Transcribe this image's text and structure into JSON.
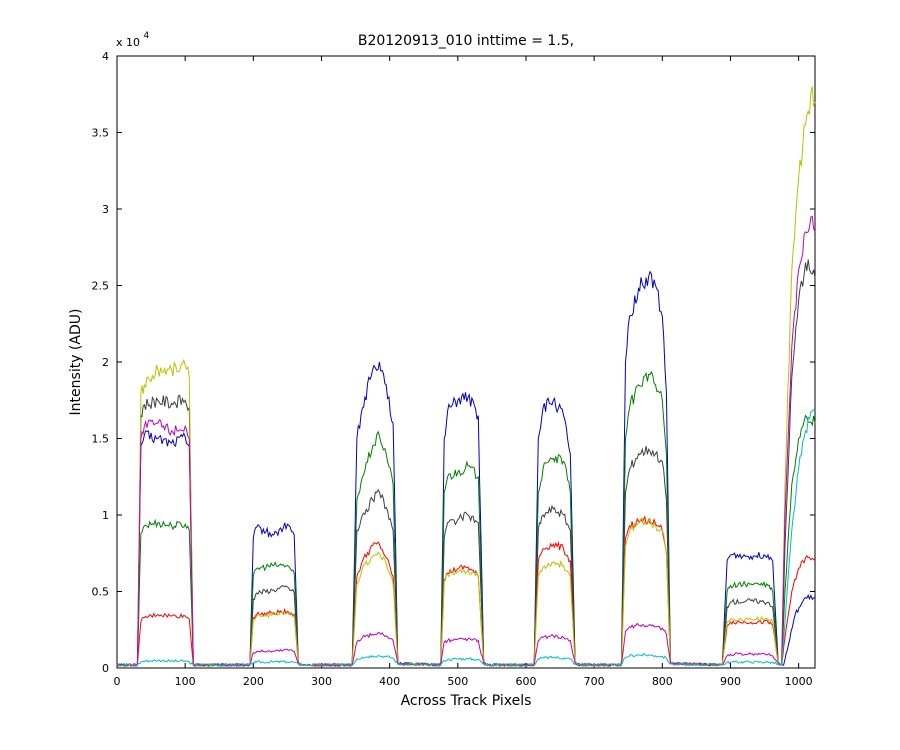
{
  "chart_data": {
    "type": "line",
    "title": "B20120913_010 inttime = 1.5,",
    "xlabel": "Across Track Pixels",
    "ylabel": "Intensity (ADU)",
    "y_exponent_label": "x 10",
    "y_exponent": "4",
    "xlim": [
      0,
      1024
    ],
    "ylim": [
      0,
      40000
    ],
    "x_ticks": [
      0,
      100,
      200,
      300,
      400,
      500,
      600,
      700,
      800,
      900,
      1000
    ],
    "x_tick_labels": [
      "0",
      "100",
      "200",
      "300",
      "400",
      "500",
      "600",
      "700",
      "800",
      "900",
      "1000"
    ],
    "y_ticks": [
      0,
      5000,
      10000,
      15000,
      20000,
      25000,
      30000,
      35000,
      40000
    ],
    "y_tick_labels": [
      "0",
      "0.5",
      "1",
      "1.5",
      "2",
      "2.5",
      "3",
      "3.5",
      "4"
    ],
    "grid": false,
    "colors": [
      "#0000bf",
      "#007f00",
      "#3f3f3f",
      "#ff0000",
      "#bfbf00",
      "#bf00bf",
      "#00bfbf"
    ],
    "series": [
      {
        "color": "#0000bf",
        "x": [
          0,
          30,
          35,
          40,
          60,
          80,
          100,
          106,
          112,
          195,
          200,
          205,
          230,
          250,
          260,
          266,
          272,
          345,
          352,
          360,
          375,
          385,
          395,
          405,
          412,
          475,
          480,
          485,
          500,
          515,
          530,
          538,
          545,
          612,
          618,
          625,
          640,
          655,
          665,
          672,
          680,
          740,
          746,
          752,
          765,
          780,
          790,
          800,
          806,
          812,
          888,
          895,
          900,
          930,
          955,
          962,
          970,
          978,
          985,
          995,
          1010,
          1024
        ],
        "values": [
          200,
          200,
          14500,
          15200,
          15000,
          14700,
          15100,
          14500,
          200,
          200,
          8500,
          9200,
          8700,
          9400,
          8700,
          300,
          200,
          200,
          15000,
          17000,
          19500,
          20000,
          18500,
          16000,
          300,
          200,
          15000,
          16800,
          17500,
          17700,
          16500,
          300,
          200,
          200,
          15000,
          17000,
          17500,
          16500,
          14000,
          300,
          200,
          200,
          20000,
          23000,
          24800,
          25600,
          25000,
          23000,
          18000,
          300,
          200,
          7000,
          7400,
          7300,
          7400,
          7000,
          300,
          200,
          1500,
          3500,
          4600,
          4600
        ]
      },
      {
        "color": "#007f00",
        "x": [
          0,
          30,
          35,
          40,
          60,
          80,
          100,
          106,
          112,
          195,
          200,
          205,
          230,
          250,
          260,
          266,
          272,
          345,
          352,
          360,
          375,
          385,
          395,
          405,
          412,
          475,
          480,
          485,
          500,
          515,
          530,
          538,
          545,
          612,
          618,
          625,
          640,
          655,
          665,
          672,
          680,
          740,
          746,
          752,
          765,
          780,
          790,
          800,
          806,
          812,
          888,
          895,
          900,
          930,
          955,
          962,
          970,
          975,
          980,
          990,
          1000,
          1010,
          1024
        ],
        "values": [
          200,
          200,
          8800,
          9300,
          9500,
          9300,
          9400,
          9000,
          200,
          200,
          6000,
          6500,
          6700,
          6700,
          6200,
          300,
          200,
          200,
          11000,
          12500,
          14500,
          15200,
          14000,
          12000,
          300,
          200,
          11500,
          12500,
          12800,
          13200,
          12500,
          300,
          200,
          200,
          11500,
          13000,
          13700,
          13500,
          11500,
          300,
          200,
          200,
          15000,
          17000,
          18500,
          19200,
          18500,
          17500,
          14000,
          300,
          200,
          5000,
          5400,
          5500,
          5400,
          5000,
          300,
          200,
          5000,
          12000,
          15000,
          16500,
          16000
        ]
      },
      {
        "color": "#3f3f3f",
        "x": [
          0,
          30,
          35,
          40,
          60,
          80,
          100,
          106,
          112,
          195,
          200,
          205,
          230,
          250,
          260,
          266,
          272,
          345,
          352,
          360,
          375,
          385,
          395,
          405,
          412,
          475,
          480,
          485,
          500,
          515,
          530,
          538,
          545,
          612,
          618,
          625,
          640,
          655,
          665,
          672,
          680,
          740,
          746,
          752,
          765,
          780,
          790,
          800,
          806,
          812,
          888,
          895,
          900,
          930,
          955,
          962,
          970,
          975,
          980,
          990,
          1000,
          1010,
          1024
        ],
        "values": [
          200,
          200,
          16500,
          17200,
          17500,
          17300,
          17500,
          17000,
          200,
          200,
          4500,
          4900,
          5100,
          5300,
          4900,
          300,
          200,
          200,
          9000,
          10000,
          11000,
          11500,
          10500,
          9000,
          300,
          200,
          8500,
          9500,
          9700,
          10000,
          9500,
          300,
          200,
          200,
          9000,
          10000,
          10400,
          10000,
          9000,
          300,
          200,
          200,
          11500,
          13000,
          14000,
          14300,
          14000,
          13500,
          11000,
          300,
          200,
          4000,
          4300,
          4400,
          4300,
          4000,
          300,
          200,
          8000,
          19000,
          24000,
          26500,
          25500
        ]
      },
      {
        "color": "#ff0000",
        "x": [
          0,
          30,
          35,
          40,
          60,
          80,
          100,
          106,
          112,
          195,
          200,
          205,
          230,
          250,
          260,
          266,
          272,
          345,
          352,
          360,
          375,
          385,
          395,
          405,
          412,
          475,
          480,
          485,
          500,
          515,
          530,
          538,
          545,
          612,
          618,
          625,
          640,
          655,
          665,
          672,
          680,
          740,
          746,
          752,
          765,
          780,
          790,
          800,
          806,
          812,
          888,
          895,
          900,
          930,
          955,
          962,
          970,
          975,
          980,
          990,
          1000,
          1010,
          1024
        ],
        "values": [
          200,
          200,
          3000,
          3300,
          3500,
          3400,
          3400,
          3200,
          200,
          200,
          3300,
          3500,
          3600,
          3700,
          3500,
          300,
          200,
          200,
          6000,
          7000,
          8000,
          8100,
          7200,
          6000,
          300,
          200,
          5800,
          6200,
          6500,
          6600,
          6000,
          300,
          200,
          200,
          7000,
          7800,
          8100,
          7800,
          7000,
          300,
          200,
          200,
          8500,
          9300,
          9600,
          9700,
          9400,
          9000,
          7500,
          300,
          200,
          2800,
          3000,
          3000,
          3000,
          2800,
          300,
          200,
          2000,
          5000,
          6500,
          7200,
          7000
        ]
      },
      {
        "color": "#bfbf00",
        "x": [
          0,
          30,
          35,
          40,
          60,
          80,
          100,
          106,
          112,
          195,
          200,
          205,
          230,
          250,
          260,
          266,
          272,
          345,
          352,
          360,
          375,
          385,
          395,
          405,
          412,
          475,
          480,
          485,
          500,
          515,
          530,
          538,
          545,
          612,
          618,
          625,
          640,
          655,
          665,
          672,
          680,
          740,
          746,
          752,
          765,
          780,
          790,
          800,
          806,
          812,
          888,
          895,
          900,
          930,
          955,
          962,
          970,
          975,
          980,
          990,
          1000,
          1010,
          1020,
          1024
        ],
        "values": [
          200,
          200,
          18000,
          18500,
          19500,
          19500,
          19800,
          19000,
          200,
          200,
          3200,
          3400,
          3500,
          3600,
          3400,
          300,
          200,
          200,
          5500,
          6500,
          7300,
          7500,
          6800,
          5500,
          300,
          200,
          5700,
          6100,
          6300,
          6400,
          6000,
          300,
          200,
          200,
          6000,
          6600,
          6900,
          6700,
          6000,
          300,
          200,
          200,
          8000,
          9000,
          9500,
          9600,
          9300,
          9000,
          7500,
          300,
          200,
          3000,
          3200,
          3200,
          3200,
          3000,
          300,
          200,
          12000,
          26000,
          32000,
          35500,
          38000,
          37000
        ]
      },
      {
        "color": "#bf00bf",
        "x": [
          0,
          30,
          35,
          40,
          60,
          80,
          100,
          106,
          112,
          195,
          200,
          205,
          230,
          250,
          260,
          266,
          272,
          345,
          352,
          360,
          375,
          385,
          395,
          405,
          412,
          475,
          480,
          485,
          500,
          515,
          530,
          538,
          545,
          612,
          618,
          625,
          640,
          655,
          665,
          672,
          680,
          740,
          746,
          752,
          765,
          780,
          790,
          800,
          806,
          812,
          888,
          895,
          900,
          930,
          955,
          962,
          970,
          975,
          980,
          990,
          1000,
          1010,
          1020,
          1024
        ],
        "values": [
          200,
          200,
          15000,
          15800,
          16000,
          15500,
          15800,
          15000,
          200,
          200,
          1000,
          1100,
          1100,
          1200,
          1100,
          300,
          200,
          200,
          1700,
          2000,
          2200,
          2300,
          2100,
          1800,
          300,
          200,
          1700,
          1800,
          1900,
          1900,
          1800,
          300,
          200,
          200,
          1800,
          2000,
          2100,
          2000,
          1800,
          300,
          200,
          200,
          2400,
          2700,
          2800,
          2800,
          2700,
          2600,
          2200,
          300,
          200,
          800,
          900,
          900,
          900,
          800,
          300,
          200,
          10000,
          21000,
          26000,
          28500,
          29500,
          28500
        ]
      },
      {
        "color": "#00bfbf",
        "x": [
          0,
          30,
          35,
          40,
          60,
          80,
          100,
          106,
          112,
          195,
          200,
          205,
          230,
          250,
          260,
          266,
          272,
          345,
          352,
          360,
          375,
          385,
          395,
          405,
          412,
          475,
          480,
          485,
          500,
          515,
          530,
          538,
          545,
          612,
          618,
          625,
          640,
          655,
          665,
          672,
          680,
          740,
          746,
          752,
          765,
          780,
          790,
          800,
          806,
          812,
          888,
          895,
          900,
          930,
          955,
          962,
          970,
          975,
          980,
          990,
          1000,
          1010,
          1020,
          1024
        ],
        "values": [
          200,
          200,
          400,
          450,
          500,
          450,
          450,
          400,
          200,
          200,
          350,
          380,
          400,
          400,
          380,
          250,
          200,
          200,
          600,
          700,
          800,
          800,
          750,
          650,
          250,
          200,
          500,
          550,
          600,
          600,
          550,
          250,
          200,
          200,
          600,
          650,
          700,
          650,
          600,
          250,
          200,
          200,
          700,
          800,
          850,
          850,
          800,
          750,
          650,
          250,
          200,
          350,
          380,
          400,
          380,
          350,
          250,
          200,
          3000,
          9000,
          13000,
          15500,
          16800,
          16800
        ]
      }
    ]
  }
}
